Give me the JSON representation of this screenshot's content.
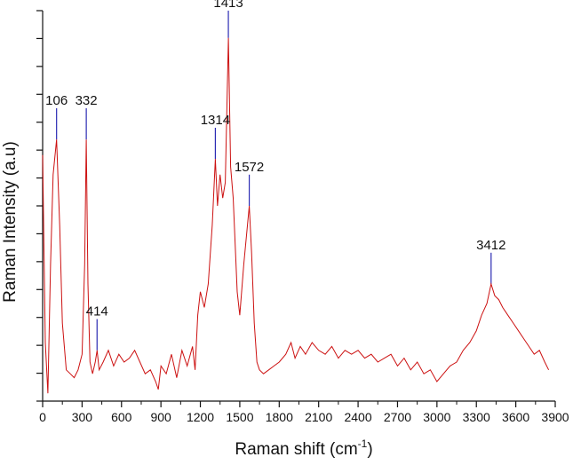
{
  "chart_data": {
    "type": "line",
    "title": "",
    "xlabel": "Raman shift (cm",
    "xlabel_superscript": "-1",
    "xlabel_suffix": ")",
    "ylabel": "Raman Intensity (a.u)",
    "xlim": [
      0,
      3900
    ],
    "ylim": [
      0,
      1
    ],
    "x_ticks": [
      0,
      300,
      600,
      900,
      1200,
      1500,
      1800,
      2100,
      2400,
      2700,
      3000,
      3300,
      3600,
      3900
    ],
    "y_tick_labels_shown": false,
    "grid": false,
    "legend": "none",
    "line_color": "#cc1111",
    "marker_color": "#2b2bb3",
    "peaks": [
      {
        "label": "106",
        "x": 106
      },
      {
        "label": "332",
        "x": 332
      },
      {
        "label": "414",
        "x": 414
      },
      {
        "label": "1314",
        "x": 1314
      },
      {
        "label": "1413",
        "x": 1413
      },
      {
        "label": "1572",
        "x": 1572
      },
      {
        "label": "3412",
        "x": 3412
      }
    ],
    "series": [
      {
        "x": [
          0,
          20,
          40,
          60,
          80,
          106,
          130,
          150,
          180,
          210,
          240,
          270,
          300,
          320,
          332,
          345,
          360,
          380,
          400,
          414,
          430,
          460,
          500,
          540,
          580,
          620,
          660,
          700,
          740,
          780,
          820,
          860,
          880,
          900,
          940,
          980,
          1020,
          1060,
          1100,
          1140,
          1160,
          1180,
          1200,
          1230,
          1260,
          1290,
          1314,
          1330,
          1350,
          1370,
          1390,
          1413,
          1430,
          1450,
          1480,
          1500,
          1530,
          1572,
          1590,
          1610,
          1630,
          1650,
          1680,
          1720,
          1760,
          1800,
          1850,
          1890,
          1920,
          1960,
          2000,
          2050,
          2100,
          2150,
          2200,
          2250,
          2300,
          2350,
          2400,
          2450,
          2500,
          2550,
          2600,
          2650,
          2700,
          2750,
          2800,
          2850,
          2900,
          2950,
          3000,
          3050,
          3100,
          3150,
          3200,
          3250,
          3300,
          3340,
          3380,
          3412,
          3440,
          3470,
          3500,
          3540,
          3580,
          3620,
          3660,
          3700,
          3740,
          3780,
          3820,
          3850
        ],
        "y": [
          0.63,
          0.15,
          0.02,
          0.35,
          0.58,
          0.67,
          0.45,
          0.2,
          0.08,
          0.07,
          0.06,
          0.08,
          0.12,
          0.35,
          0.67,
          0.3,
          0.1,
          0.07,
          0.1,
          0.13,
          0.08,
          0.1,
          0.13,
          0.09,
          0.12,
          0.1,
          0.11,
          0.13,
          0.1,
          0.07,
          0.08,
          0.05,
          0.03,
          0.09,
          0.07,
          0.12,
          0.06,
          0.13,
          0.09,
          0.14,
          0.08,
          0.22,
          0.28,
          0.24,
          0.3,
          0.45,
          0.62,
          0.5,
          0.58,
          0.52,
          0.56,
          0.93,
          0.6,
          0.52,
          0.28,
          0.22,
          0.35,
          0.5,
          0.38,
          0.2,
          0.1,
          0.08,
          0.07,
          0.08,
          0.09,
          0.1,
          0.12,
          0.15,
          0.11,
          0.14,
          0.12,
          0.15,
          0.13,
          0.12,
          0.14,
          0.11,
          0.13,
          0.12,
          0.13,
          0.11,
          0.12,
          0.1,
          0.11,
          0.12,
          0.09,
          0.11,
          0.08,
          0.1,
          0.07,
          0.08,
          0.05,
          0.07,
          0.09,
          0.1,
          0.13,
          0.15,
          0.18,
          0.22,
          0.25,
          0.3,
          0.27,
          0.26,
          0.24,
          0.22,
          0.2,
          0.18,
          0.16,
          0.14,
          0.12,
          0.13,
          0.1,
          0.08
        ]
      }
    ]
  }
}
